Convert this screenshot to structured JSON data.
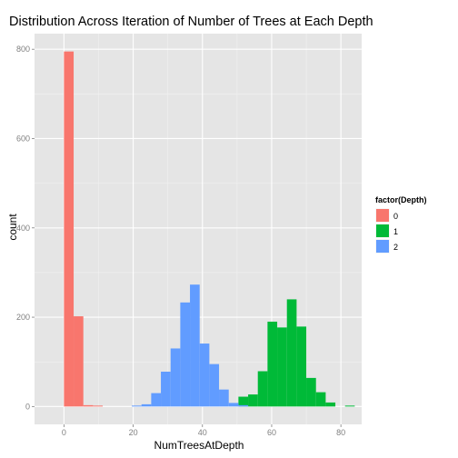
{
  "chart_data": {
    "type": "bar",
    "title": "Distribution Across Iteration of Number of Trees at Each Depth",
    "xlabel": "NumTreesAtDepth",
    "ylabel": "count",
    "xlim": [
      -8.5,
      86
    ],
    "ylim": [
      -40,
      835
    ],
    "x_ticks": [
      0,
      20,
      40,
      60,
      80
    ],
    "y_ticks": [
      0,
      200,
      400,
      600,
      800
    ],
    "bin_width": 2.8,
    "grid": true,
    "legend": {
      "title": "factor(Depth)",
      "position": "right"
    },
    "series": [
      {
        "name": "0",
        "color": "#F8766D",
        "bins": [
          {
            "x0": 0,
            "count": 795
          },
          {
            "x0": 2.8,
            "count": 202
          },
          {
            "x0": 5.6,
            "count": 3
          },
          {
            "x0": 8.4,
            "count": 2
          }
        ]
      },
      {
        "name": "1",
        "color": "#00BA38",
        "bins": [
          {
            "x0": 50.4,
            "count": 22
          },
          {
            "x0": 53.2,
            "count": 27
          },
          {
            "x0": 56.0,
            "count": 79
          },
          {
            "x0": 58.8,
            "count": 190
          },
          {
            "x0": 61.6,
            "count": 177
          },
          {
            "x0": 64.4,
            "count": 240
          },
          {
            "x0": 67.2,
            "count": 179
          },
          {
            "x0": 70.0,
            "count": 64
          },
          {
            "x0": 72.8,
            "count": 32
          },
          {
            "x0": 75.6,
            "count": 9
          },
          {
            "x0": 81.2,
            "count": 2
          }
        ]
      },
      {
        "name": "2",
        "color": "#619CFF",
        "bins": [
          {
            "x0": 19.6,
            "count": 2
          },
          {
            "x0": 22.4,
            "count": 5
          },
          {
            "x0": 25.2,
            "count": 30
          },
          {
            "x0": 28.0,
            "count": 78
          },
          {
            "x0": 30.8,
            "count": 130
          },
          {
            "x0": 33.6,
            "count": 233
          },
          {
            "x0": 36.4,
            "count": 273
          },
          {
            "x0": 39.2,
            "count": 141
          },
          {
            "x0": 42.0,
            "count": 95
          },
          {
            "x0": 44.8,
            "count": 38
          },
          {
            "x0": 47.6,
            "count": 8
          },
          {
            "x0": 50.4,
            "count": 3
          }
        ]
      }
    ]
  }
}
